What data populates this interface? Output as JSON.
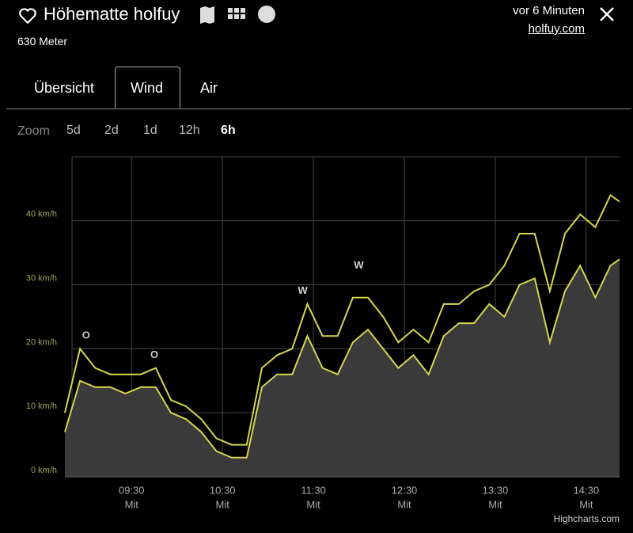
{
  "header": {
    "title": "Höhematte holfuy",
    "altitude": "630 Meter",
    "updated": "vor 6 Minuten",
    "link": "holfuy.com"
  },
  "tabs": [
    "Übersicht",
    "Wind",
    "Air"
  ],
  "zoom": {
    "label": "Zoom",
    "options": [
      "5d",
      "2d",
      "1d",
      "12h",
      "6h"
    ]
  },
  "chart_data": {
    "type": "area-line",
    "x": [
      "08:46",
      "08:56",
      "09:06",
      "09:16",
      "09:26",
      "09:36",
      "09:46",
      "09:56",
      "10:06",
      "10:16",
      "10:26",
      "10:36",
      "10:46",
      "10:56",
      "11:06",
      "11:16",
      "11:26",
      "11:36",
      "11:46",
      "11:56",
      "12:06",
      "12:16",
      "12:26",
      "12:36",
      "12:46",
      "12:56",
      "13:06",
      "13:16",
      "13:26",
      "13:36",
      "13:46",
      "13:56",
      "14:06",
      "14:16",
      "14:26",
      "14:36",
      "14:46",
      "14:52"
    ],
    "series": [
      {
        "color": "#d6d64c",
        "values": [
          10,
          20,
          17,
          16,
          16,
          16,
          17,
          12,
          11,
          9,
          6,
          5,
          5,
          17,
          19,
          20,
          27,
          22,
          22,
          28,
          28,
          25,
          21,
          23,
          21,
          27,
          27,
          29,
          30,
          33,
          38,
          38,
          29,
          38,
          41,
          39,
          44,
          43
        ]
      },
      {
        "color": "#d6d64c",
        "fill": "#3a3a3a",
        "values": [
          7,
          15,
          14,
          14,
          13,
          14,
          14,
          10,
          9,
          7,
          4,
          3,
          3,
          14,
          16,
          16,
          22,
          17,
          16,
          21,
          23,
          20,
          17,
          19,
          16,
          22,
          24,
          24,
          27,
          25,
          30,
          31,
          21,
          29,
          33,
          28,
          33,
          34
        ]
      }
    ],
    "xlim": [
      "08:46",
      "14:52"
    ],
    "xticks": [
      "09:30",
      "10:30",
      "11:30",
      "12:30",
      "13:30",
      "14:30"
    ],
    "xtick_days": [
      "Mit",
      "Mit",
      "Mit",
      "Mit",
      "Mit",
      "Mit"
    ],
    "ylim": [
      0,
      50
    ],
    "yticks": [
      {
        "value": 0,
        "label": "0 km/h"
      },
      {
        "value": 10,
        "label": "10 km/h"
      },
      {
        "value": 20,
        "label": "20 km/h"
      },
      {
        "value": 30,
        "label": "30 km/h"
      },
      {
        "value": 40,
        "label": "40 km/h"
      }
    ],
    "grid": true,
    "annotations": [
      {
        "x": "09:00",
        "y": 22,
        "text": "O"
      },
      {
        "x": "09:45",
        "y": 19,
        "text": "O"
      },
      {
        "x": "11:23",
        "y": 29,
        "text": "W"
      },
      {
        "x": "12:00",
        "y": 33,
        "text": "W"
      }
    ],
    "credits": "Highcharts.com"
  }
}
